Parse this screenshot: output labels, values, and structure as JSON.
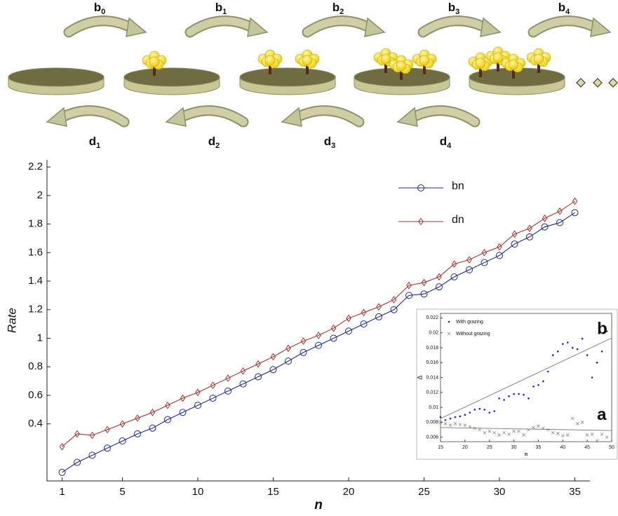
{
  "diagram": {
    "birth_labels": [
      {
        "base": "b",
        "sub": "0"
      },
      {
        "base": "b",
        "sub": "1"
      },
      {
        "base": "b",
        "sub": "2"
      },
      {
        "base": "b",
        "sub": "3"
      },
      {
        "base": "b",
        "sub": "4"
      }
    ],
    "death_labels": [
      {
        "base": "d",
        "sub": "1"
      },
      {
        "base": "d",
        "sub": "2"
      },
      {
        "base": "d",
        "sub": "3"
      },
      {
        "base": "d",
        "sub": "4"
      }
    ]
  },
  "chart_data": [
    {
      "type": "line",
      "xlabel": "n",
      "ylabel": "Rate",
      "x": [
        1,
        2,
        3,
        4,
        5,
        6,
        7,
        8,
        9,
        10,
        11,
        12,
        13,
        14,
        15,
        16,
        17,
        18,
        19,
        20,
        21,
        22,
        23,
        24,
        25,
        26,
        27,
        28,
        29,
        30,
        31,
        32,
        33,
        34,
        35
      ],
      "series": [
        {
          "name": "bn",
          "color": "#1f2a8c",
          "marker": "circle",
          "values": [
            0.06,
            0.13,
            0.18,
            0.23,
            0.28,
            0.33,
            0.37,
            0.43,
            0.48,
            0.53,
            0.58,
            0.63,
            0.68,
            0.73,
            0.78,
            0.84,
            0.9,
            0.95,
            1.0,
            1.05,
            1.1,
            1.15,
            1.2,
            1.3,
            1.31,
            1.36,
            1.43,
            1.48,
            1.53,
            1.58,
            1.66,
            1.71,
            1.78,
            1.81,
            1.88
          ]
        },
        {
          "name": "dn",
          "color": "#a83232",
          "marker": "diamond",
          "values": [
            0.24,
            0.33,
            0.32,
            0.36,
            0.4,
            0.44,
            0.48,
            0.53,
            0.58,
            0.62,
            0.67,
            0.72,
            0.77,
            0.82,
            0.87,
            0.93,
            0.98,
            1.02,
            1.07,
            1.14,
            1.18,
            1.22,
            1.27,
            1.37,
            1.39,
            1.43,
            1.52,
            1.55,
            1.6,
            1.64,
            1.73,
            1.77,
            1.84,
            1.89,
            1.96
          ]
        }
      ],
      "xlim": [
        0,
        36
      ],
      "ylim": [
        0,
        2.25
      ],
      "xticks": [
        1,
        5,
        10,
        15,
        20,
        25,
        30,
        35
      ],
      "yticks": [
        0.4,
        0.6,
        0.8,
        1,
        1.2,
        1.4,
        1.6,
        1.8,
        2,
        2.2
      ],
      "legend": "upper-right"
    },
    {
      "type": "scatter",
      "xlabel": "n",
      "ylabel": "Δ",
      "x": [
        15,
        16,
        17,
        18,
        19,
        20,
        21,
        22,
        23,
        24,
        25,
        26,
        27,
        28,
        29,
        30,
        31,
        32,
        33,
        34,
        35,
        36,
        37,
        38,
        39,
        40,
        41,
        42,
        43,
        44,
        45,
        46,
        47,
        48,
        49
      ],
      "series": [
        {
          "name": "With grazing",
          "color": "#1f1fd0",
          "marker": "dot",
          "values": [
            0.0087,
            0.0083,
            0.0085,
            0.0087,
            0.0088,
            0.009,
            0.0093,
            0.0097,
            0.0098,
            0.0097,
            0.0093,
            0.0095,
            0.0112,
            0.011,
            0.0115,
            0.0118,
            0.0118,
            0.0117,
            0.0112,
            0.0128,
            0.013,
            0.0135,
            0.0148,
            0.017,
            0.0175,
            0.0185,
            0.0187,
            0.018,
            0.0178,
            0.0192,
            0.017,
            0.014,
            0.016,
            0.0175,
            0.0202
          ]
        },
        {
          "name": "Without grazing",
          "color": "#888888",
          "marker": "x",
          "values": [
            0.008,
            0.0078,
            0.0076,
            0.0078,
            0.0077,
            0.0076,
            0.0074,
            0.0072,
            0.007,
            0.0066,
            0.0068,
            0.0066,
            0.0063,
            0.0066,
            0.0064,
            0.0068,
            0.0068,
            0.0063,
            0.007,
            0.0073,
            0.0075,
            0.0072,
            0.007,
            0.0066,
            0.0065,
            0.0062,
            0.0063,
            0.0085,
            0.0078,
            0.008,
            0.0063,
            0.0064,
            0.0055,
            0.0064,
            0.006
          ]
        }
      ],
      "trend_lines": [
        {
          "x": [
            15,
            50
          ],
          "values": [
            0.0085,
            0.0193
          ]
        },
        {
          "x": [
            15,
            50
          ],
          "values": [
            0.0073,
            0.0069
          ]
        }
      ],
      "annotations": [
        {
          "text": "b",
          "x": 47,
          "y": 0.0193
        },
        {
          "text": "a",
          "x": 47,
          "y": 0.0078
        }
      ],
      "xlim": [
        15,
        50
      ],
      "ylim": [
        0.0054,
        0.0226
      ],
      "xticks": [
        15,
        20,
        25,
        30,
        35,
        40,
        45,
        50
      ],
      "yticks": [
        0.006,
        0.008,
        0.01,
        0.012,
        0.014,
        0.016,
        0.018,
        0.02,
        0.022
      ],
      "legend": "upper-left"
    }
  ]
}
